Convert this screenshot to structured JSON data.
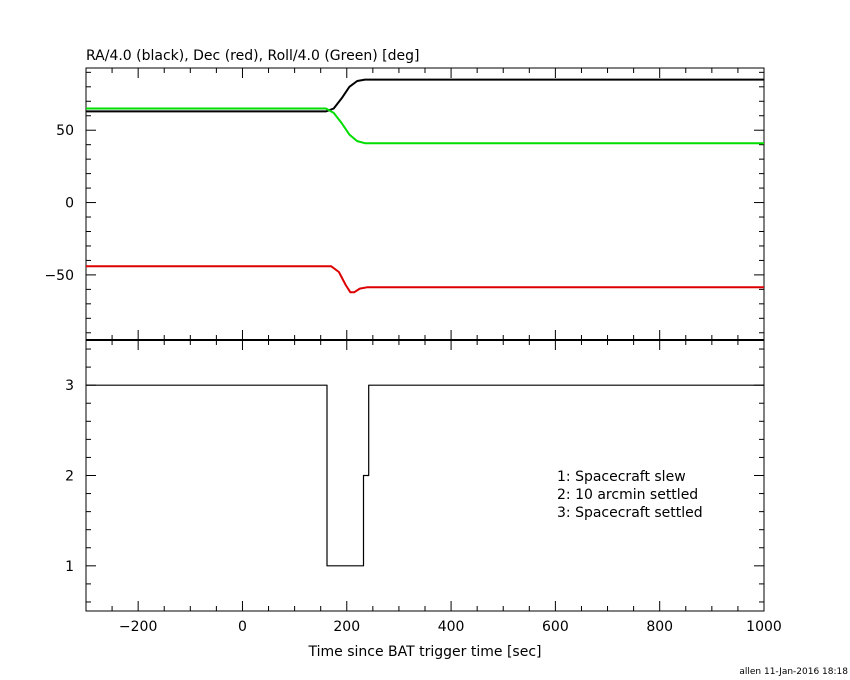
{
  "chart_data": [
    {
      "type": "line",
      "title": "RA/4.0 (black), Dec (red), Roll/4.0 (Green) [deg]",
      "xlim": [
        -300,
        1000
      ],
      "ylim": [
        -95,
        93
      ],
      "yticks": [
        -50,
        0,
        50
      ],
      "grid": false,
      "series": [
        {
          "color": "#000000",
          "x": [
            -300,
            160,
            175,
            190,
            205,
            220,
            235,
            380,
            1000
          ],
          "y": [
            63,
            63,
            65,
            72,
            80,
            84,
            85,
            85,
            85
          ]
        },
        {
          "color": "#dd0000",
          "x": [
            -300,
            170,
            185,
            198,
            207,
            214,
            225,
            240,
            380,
            1000
          ],
          "y": [
            -44,
            -44,
            -48,
            -57,
            -62,
            -62,
            -59.5,
            -58.5,
            -58.5,
            -58.5
          ]
        },
        {
          "color": "#00dd00",
          "x": [
            -300,
            160,
            175,
            190,
            205,
            220,
            235,
            380,
            1000
          ],
          "y": [
            65,
            65,
            62,
            55,
            47,
            42.5,
            41,
            41,
            41
          ]
        }
      ]
    },
    {
      "type": "line",
      "xlabel": "Time since BAT trigger time [sec]",
      "xlim": [
        -300,
        1000
      ],
      "xticks": [
        -200,
        0,
        200,
        400,
        600,
        800,
        1000
      ],
      "ylim": [
        0.5,
        3.5
      ],
      "yticks": [
        1,
        2,
        3
      ],
      "grid": false,
      "legend_position": "right",
      "legend": [
        "1: Spacecraft slew",
        "2: 10 arcmin settled",
        "3: Spacecraft settled"
      ],
      "series": [
        {
          "color": "#000000",
          "step": true,
          "x": [
            -300,
            162,
            162,
            232,
            232,
            242,
            242,
            1000
          ],
          "y": [
            3,
            3,
            1,
            1,
            2,
            2,
            3,
            3
          ]
        }
      ]
    }
  ],
  "footer": "allen 11-Jan-2016 18:18"
}
